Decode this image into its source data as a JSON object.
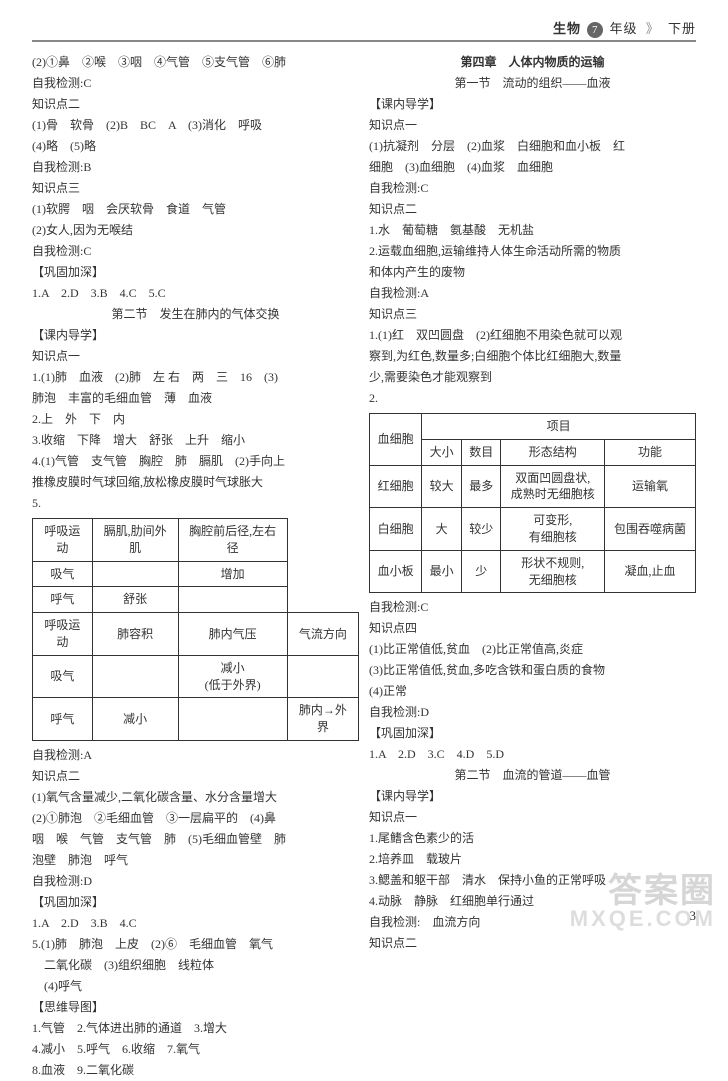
{
  "header": {
    "subject": "生物",
    "grade_circle": "7",
    "grade_tail": "年级",
    "arrow": "》",
    "volume": "下册"
  },
  "left": {
    "lines_top": [
      "(2)①鼻　②喉　③咽　④气管　⑤支气管　⑥肺",
      "自我检测:C",
      "知识点二",
      "(1)骨　软骨　(2)B　BC　A　(3)消化　呼吸",
      "(4)略　(5)略",
      "自我检测:B",
      "知识点三",
      "(1)软腭　咽　会厌软骨　食道　气管",
      "(2)女人,因为无喉结",
      "自我检测:C",
      "【巩固加深】",
      "1.A　2.D　3.B　4.C　5.C"
    ],
    "section2_title": "第二节　发生在肺内的气体交换",
    "lines_mid1": [
      "【课内导学】",
      "知识点一",
      "1.(1)肺　血液　(2)肺　左 右　两　三　16　(3)",
      "肺泡　丰富的毛细血管　薄　血液",
      "2.上　外　下　内",
      "3.收缩　下降　增大　舒张　上升　缩小",
      "4.(1)气管　支气管　胸腔　肺　膈肌　(2)手向上",
      "推橡皮膜时气球回缩,放松橡皮膜时气球胀大",
      "5."
    ],
    "table1": {
      "headers": [
        "呼吸运动",
        "膈肌,肋间外肌",
        "胸腔前后径,左右径"
      ],
      "rows": [
        [
          "吸气",
          "",
          "增加"
        ],
        [
          "呼气",
          "舒张",
          ""
        ]
      ],
      "headers2": [
        "呼吸运动",
        "肺容积",
        "肺内气压",
        "气流方向"
      ],
      "rows2": [
        [
          "吸气",
          "",
          "减小\n(低于外界)",
          ""
        ],
        [
          "呼气",
          "减小",
          "",
          "肺内→外界"
        ]
      ]
    },
    "lines_mid2": [
      "自我检测:A",
      "知识点二",
      "(1)氧气含量减少,二氧化碳含量、水分含量增大",
      "(2)①肺泡　②毛细血管　③一层扁平的　(4)鼻",
      "咽　喉　气管　支气管　肺　(5)毛细血管壁　肺",
      "泡壁　肺泡　呼气",
      "自我检测:D",
      "【巩固加深】",
      "1.A　2.D　3.B　4.C",
      "5.(1)肺　肺泡　上皮　(2)⑥　毛细血管　氧气",
      "　二氧化碳　(3)组织细胞　线粒体",
      "　(4)呼气",
      "【思维导图】",
      "1.气管　2.气体进出肺的通道　3.增大",
      "4.减小　5.呼气　6.收缩　7.氧气",
      "8.血液　9.二氧化碳"
    ]
  },
  "right": {
    "chapter_title": "第四章　人体内物质的运输",
    "section1_title": "第一节　流动的组织——血液",
    "lines_r1": [
      "【课内导学】",
      "知识点一",
      "(1)抗凝剂　分层　(2)血浆　白细胞和血小板　红",
      "细胞　(3)血细胞　(4)血浆　血细胞",
      "自我检测:C",
      "知识点二",
      "1.水　葡萄糖　氨基酸　无机盐",
      "2.运载血细胞,运输维持人体生命活动所需的物质",
      "和体内产生的废物",
      "自我检测:A",
      "知识点三",
      "1.(1)红　双凹圆盘　(2)红细胞不用染色就可以观",
      "察到,为红色,数量多;白细胞个体比红细胞大,数量",
      "少,需要染色才能观察到",
      "2."
    ],
    "table2": {
      "row_label": "血细胞",
      "top_header": "项目",
      "cols": [
        "大小",
        "数目",
        "形态结构",
        "功能"
      ],
      "rows": [
        {
          "label": "红细胞",
          "cells": [
            "较大",
            "最多",
            "双面凹圆盘状,\n成熟时无细胞核",
            "运输氧"
          ]
        },
        {
          "label": "白细胞",
          "cells": [
            "大",
            "较少",
            "可变形,\n有细胞核",
            "包围吞噬病菌"
          ]
        },
        {
          "label": "血小板",
          "cells": [
            "最小",
            "少",
            "形状不规则,\n无细胞核",
            "凝血,止血"
          ]
        }
      ]
    },
    "lines_r2": [
      "自我检测:C",
      "知识点四",
      "(1)比正常值低,贫血　(2)比正常值高,炎症",
      "(3)比正常值低,贫血,多吃含铁和蛋白质的食物",
      "(4)正常",
      "自我检测:D",
      "【巩固加深】",
      "1.A　2.D　3.C　4.D　5.D"
    ],
    "section2_title": "第二节　血流的管道——血管",
    "lines_r3": [
      "【课内导学】",
      "知识点一",
      "1.尾鳍含色素少的活",
      "2.培养皿　载玻片",
      "3.鳃盖和躯干部　清水　保持小鱼的正常呼吸",
      "4.动脉　静脉　红细胞单行通过",
      "自我检测:　血流方向",
      "知识点二"
    ]
  },
  "page_number": "3",
  "watermark": {
    "main": "答案圈",
    "sub": "MXQE.COM"
  },
  "style": {
    "bg": "#ffffff",
    "text": "#333333",
    "border": "#333333",
    "muted": "#888888",
    "font_main": "SimSun",
    "font_size_body": 12,
    "font_size_header": 13
  }
}
